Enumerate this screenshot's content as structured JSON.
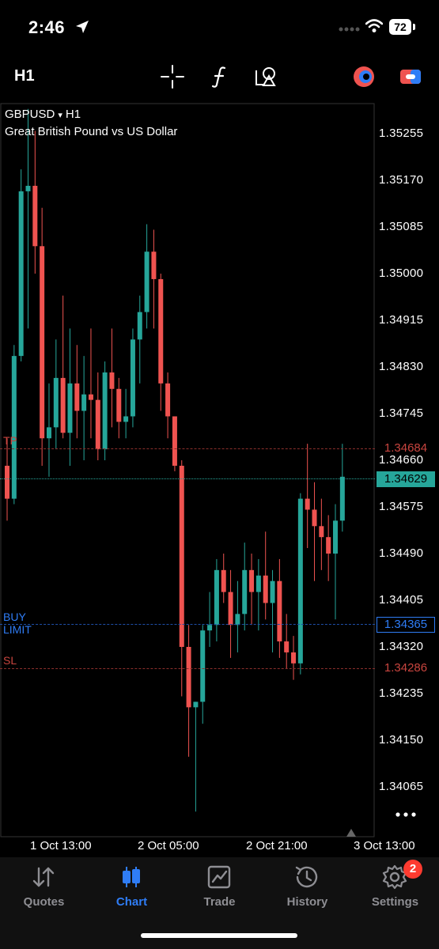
{
  "status_bar": {
    "time": "2:46",
    "battery": "72"
  },
  "toolbar": {
    "timeframe": "H1"
  },
  "chart": {
    "symbol": "GBPUSD",
    "symbol_arrow": "▾",
    "timeframe": "H1",
    "description": "Great British Pound vs US Dollar",
    "price_scale": [
      "1.35255",
      "1.35170",
      "1.35085",
      "1.35000",
      "1.34915",
      "1.34830",
      "1.34745",
      "1.34660",
      "1.34575",
      "1.34490",
      "1.34405",
      "1.34320",
      "1.34235",
      "1.34150",
      "1.34065"
    ],
    "time_labels": [
      "1 Oct 13:00",
      "2 Oct 05:00",
      "2 Oct 21:00",
      "3 Oct 13:00"
    ],
    "tp": {
      "label": "TP",
      "price": "1.34684"
    },
    "current": {
      "price": "1.34629"
    },
    "buy_limit": {
      "label": "BUY LIMIT",
      "price": "1.34365"
    },
    "sl": {
      "label": "SL",
      "price": "1.34286"
    },
    "colors": {
      "bull": "#26a69a",
      "bear": "#ef5350",
      "tp": "#c9453f",
      "buy": "#2f7df6",
      "current": "#26a69a"
    }
  },
  "chart_data": {
    "type": "candlestick",
    "title": "GBPUSD H1",
    "ylim": [
      1.3403,
      1.3529
    ],
    "candles": [
      [
        1.3465,
        1.347,
        1.3455,
        1.3459
      ],
      [
        1.3459,
        1.3487,
        1.3458,
        1.3485
      ],
      [
        1.3485,
        1.3519,
        1.3484,
        1.3515
      ],
      [
        1.3515,
        1.353,
        1.349,
        1.3516
      ],
      [
        1.3516,
        1.3526,
        1.35,
        1.3505
      ],
      [
        1.3505,
        1.3512,
        1.3465,
        1.347
      ],
      [
        1.347,
        1.348,
        1.3463,
        1.3472
      ],
      [
        1.3472,
        1.3488,
        1.3468,
        1.3481
      ],
      [
        1.3481,
        1.3496,
        1.347,
        1.3471
      ],
      [
        1.3471,
        1.349,
        1.3465,
        1.348
      ],
      [
        1.348,
        1.3487,
        1.347,
        1.3475
      ],
      [
        1.3475,
        1.3485,
        1.3466,
        1.3478
      ],
      [
        1.3478,
        1.349,
        1.347,
        1.3477
      ],
      [
        1.3477,
        1.3482,
        1.3466,
        1.3468
      ],
      [
        1.3468,
        1.3484,
        1.3466,
        1.3482
      ],
      [
        1.3482,
        1.349,
        1.3472,
        1.3479
      ],
      [
        1.3479,
        1.3481,
        1.347,
        1.3473
      ],
      [
        1.3473,
        1.3479,
        1.347,
        1.3474
      ],
      [
        1.3474,
        1.349,
        1.3472,
        1.3488
      ],
      [
        1.3488,
        1.3496,
        1.348,
        1.3493
      ],
      [
        1.3493,
        1.3509,
        1.349,
        1.3504
      ],
      [
        1.3504,
        1.3508,
        1.349,
        1.3499
      ],
      [
        1.3499,
        1.35,
        1.3475,
        1.348
      ],
      [
        1.348,
        1.3482,
        1.347,
        1.3474
      ],
      [
        1.3474,
        1.3474,
        1.3464,
        1.3465
      ],
      [
        1.3465,
        1.3466,
        1.3423,
        1.3432
      ],
      [
        1.3432,
        1.3436,
        1.3412,
        1.3421
      ],
      [
        1.3421,
        1.3422,
        1.3402,
        1.3422
      ],
      [
        1.3422,
        1.3436,
        1.3418,
        1.3435
      ],
      [
        1.3435,
        1.3442,
        1.3432,
        1.3436
      ],
      [
        1.3436,
        1.3448,
        1.3433,
        1.3446
      ],
      [
        1.3446,
        1.3449,
        1.344,
        1.3442
      ],
      [
        1.3442,
        1.3446,
        1.343,
        1.3436
      ],
      [
        1.3436,
        1.3444,
        1.3431,
        1.3438
      ],
      [
        1.3438,
        1.3451,
        1.3435,
        1.3446
      ],
      [
        1.3446,
        1.3449,
        1.3436,
        1.3442
      ],
      [
        1.3442,
        1.3448,
        1.3435,
        1.3445
      ],
      [
        1.3445,
        1.3453,
        1.3437,
        1.344
      ],
      [
        1.344,
        1.3446,
        1.3431,
        1.3444
      ],
      [
        1.3444,
        1.3448,
        1.343,
        1.3433
      ],
      [
        1.3433,
        1.3438,
        1.3428,
        1.3431
      ],
      [
        1.3431,
        1.3434,
        1.3426,
        1.3429
      ],
      [
        1.3429,
        1.346,
        1.3427,
        1.3459
      ],
      [
        1.3459,
        1.3469,
        1.345,
        1.3457
      ],
      [
        1.3457,
        1.3462,
        1.3444,
        1.3454
      ],
      [
        1.3454,
        1.3459,
        1.3446,
        1.3452
      ],
      [
        1.3452,
        1.3456,
        1.3444,
        1.3449
      ],
      [
        1.3449,
        1.3458,
        1.3437,
        1.3455
      ],
      [
        1.3455,
        1.3469,
        1.3453,
        1.3463
      ]
    ]
  },
  "tabs": [
    {
      "label": "Quotes"
    },
    {
      "label": "Chart"
    },
    {
      "label": "Trade"
    },
    {
      "label": "History"
    },
    {
      "label": "Settings"
    }
  ],
  "settings_badge": "2"
}
